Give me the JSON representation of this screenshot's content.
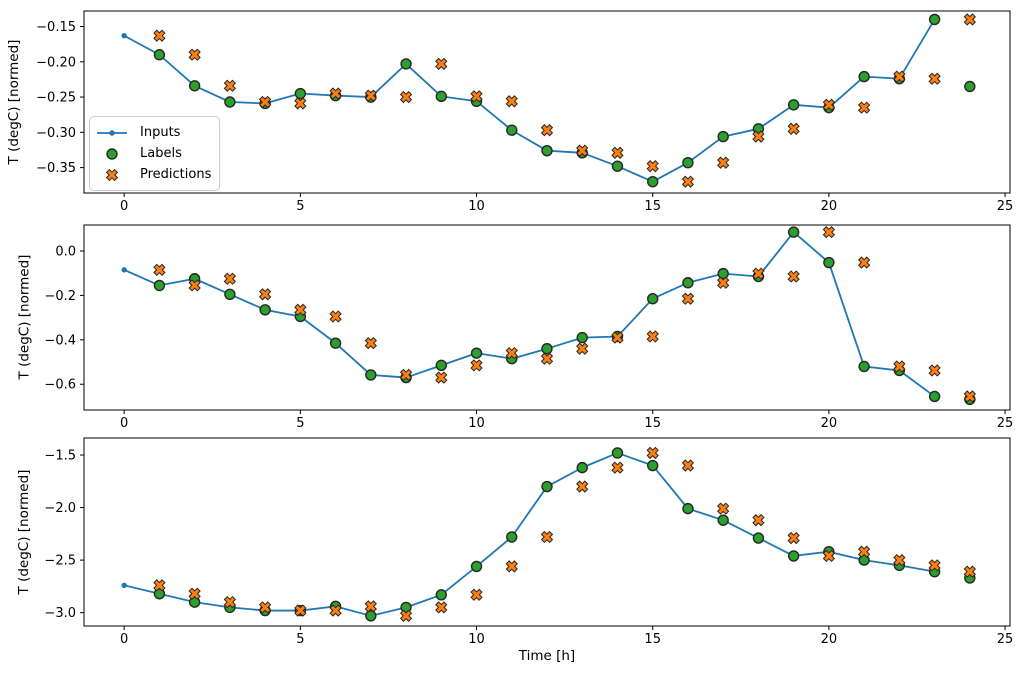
{
  "figure": {
    "background": "#ffffff",
    "xlabel": "Time [h]",
    "ylabel": "T (degC) [normed]"
  },
  "legend": {
    "items": [
      {
        "label": "Inputs",
        "marker": "line-dot",
        "color": "#1f77b4",
        "edgecolor": "#1f77b4"
      },
      {
        "label": "Labels",
        "marker": "circle",
        "color": "#2ca02c",
        "edgecolor": "#262626"
      },
      {
        "label": "Predictions",
        "marker": "X",
        "color": "#ff7f0e",
        "edgecolor": "#262626"
      }
    ]
  },
  "chart_data": [
    {
      "type": "line",
      "title": "",
      "xlabel": "",
      "ylabel": "T (degC) [normed]",
      "xlim": [
        -1.14,
        25.14
      ],
      "ylim": [
        -0.386,
        -0.128
      ],
      "xticks": [
        0,
        5,
        10,
        15,
        20,
        25
      ],
      "xticklabels": [
        "0",
        "5",
        "10",
        "15",
        "20",
        "25"
      ],
      "yticks": [
        -0.15,
        -0.2,
        -0.25,
        -0.3,
        -0.35
      ],
      "yticklabels": [
        "−0.15",
        "−0.20",
        "−0.25",
        "−0.30",
        "−0.35"
      ],
      "grid": false,
      "legend_visible": true,
      "series": [
        {
          "name": "Inputs",
          "plot": "line",
          "marker": "dot",
          "color": "#1f77b4",
          "x": [
            0,
            1,
            2,
            3,
            4,
            5,
            6,
            7,
            8,
            9,
            10,
            11,
            12,
            13,
            14,
            15,
            16,
            17,
            18,
            19,
            20,
            21,
            22,
            23
          ],
          "y": [
            -0.163,
            -0.19,
            -0.234,
            -0.257,
            -0.259,
            -0.245,
            -0.248,
            -0.25,
            -0.203,
            -0.249,
            -0.256,
            -0.297,
            -0.326,
            -0.329,
            -0.348,
            -0.37,
            -0.343,
            -0.306,
            -0.295,
            -0.261,
            -0.265,
            -0.221,
            -0.224,
            -0.14
          ]
        },
        {
          "name": "Labels",
          "plot": "scatter",
          "marker": "circle",
          "color": "#2ca02c",
          "edgecolor": "#262626",
          "x": [
            1,
            2,
            3,
            4,
            5,
            6,
            7,
            8,
            9,
            10,
            11,
            12,
            13,
            14,
            15,
            16,
            17,
            18,
            19,
            20,
            21,
            22,
            23,
            24
          ],
          "y": [
            -0.19,
            -0.234,
            -0.257,
            -0.259,
            -0.245,
            -0.248,
            -0.25,
            -0.203,
            -0.249,
            -0.256,
            -0.297,
            -0.326,
            -0.329,
            -0.348,
            -0.37,
            -0.343,
            -0.306,
            -0.295,
            -0.261,
            -0.265,
            -0.221,
            -0.224,
            -0.14,
            -0.235
          ]
        },
        {
          "name": "Predictions",
          "plot": "scatter",
          "marker": "X",
          "color": "#ff7f0e",
          "edgecolor": "#262626",
          "x": [
            1,
            2,
            3,
            4,
            5,
            6,
            7,
            8,
            9,
            10,
            11,
            12,
            13,
            14,
            15,
            16,
            17,
            18,
            19,
            20,
            21,
            22,
            23,
            24
          ],
          "y": [
            -0.163,
            -0.19,
            -0.234,
            -0.257,
            -0.259,
            -0.245,
            -0.248,
            -0.25,
            -0.203,
            -0.249,
            -0.256,
            -0.297,
            -0.326,
            -0.329,
            -0.348,
            -0.37,
            -0.343,
            -0.306,
            -0.295,
            -0.261,
            -0.265,
            -0.221,
            -0.224,
            -0.14
          ]
        }
      ]
    },
    {
      "type": "line",
      "title": "",
      "xlabel": "",
      "ylabel": "T (degC) [normed]",
      "xlim": [
        -1.14,
        25.14
      ],
      "ylim": [
        -0.716,
        0.117
      ],
      "xticks": [
        0,
        5,
        10,
        15,
        20,
        25
      ],
      "xticklabels": [
        "0",
        "5",
        "10",
        "15",
        "20",
        "25"
      ],
      "yticks": [
        0.0,
        -0.2,
        -0.4,
        -0.6
      ],
      "yticklabels": [
        "0.0",
        "−0.2",
        "−0.4",
        "−0.6"
      ],
      "grid": false,
      "legend_visible": false,
      "series": [
        {
          "name": "Inputs",
          "plot": "line",
          "marker": "dot",
          "color": "#1f77b4",
          "x": [
            0,
            1,
            2,
            3,
            4,
            5,
            6,
            7,
            8,
            9,
            10,
            11,
            12,
            13,
            14,
            15,
            16,
            17,
            18,
            19,
            20,
            21,
            22,
            23
          ],
          "y": [
            -0.085,
            -0.155,
            -0.125,
            -0.195,
            -0.265,
            -0.295,
            -0.415,
            -0.558,
            -0.57,
            -0.515,
            -0.46,
            -0.485,
            -0.44,
            -0.39,
            -0.385,
            -0.215,
            -0.143,
            -0.102,
            -0.115,
            0.085,
            -0.052,
            -0.52,
            -0.538,
            -0.655
          ]
        },
        {
          "name": "Labels",
          "plot": "scatter",
          "marker": "circle",
          "color": "#2ca02c",
          "edgecolor": "#262626",
          "x": [
            1,
            2,
            3,
            4,
            5,
            6,
            7,
            8,
            9,
            10,
            11,
            12,
            13,
            14,
            15,
            16,
            17,
            18,
            19,
            20,
            21,
            22,
            23,
            24
          ],
          "y": [
            -0.155,
            -0.125,
            -0.195,
            -0.265,
            -0.295,
            -0.415,
            -0.558,
            -0.57,
            -0.515,
            -0.46,
            -0.485,
            -0.44,
            -0.39,
            -0.385,
            -0.215,
            -0.143,
            -0.102,
            -0.115,
            0.085,
            -0.052,
            -0.52,
            -0.538,
            -0.655,
            -0.668
          ]
        },
        {
          "name": "Predictions",
          "plot": "scatter",
          "marker": "X",
          "color": "#ff7f0e",
          "edgecolor": "#262626",
          "x": [
            1,
            2,
            3,
            4,
            5,
            6,
            7,
            8,
            9,
            10,
            11,
            12,
            13,
            14,
            15,
            16,
            17,
            18,
            19,
            20,
            21,
            22,
            23,
            24
          ],
          "y": [
            -0.085,
            -0.155,
            -0.125,
            -0.195,
            -0.265,
            -0.295,
            -0.415,
            -0.558,
            -0.57,
            -0.515,
            -0.46,
            -0.485,
            -0.44,
            -0.39,
            -0.385,
            -0.215,
            -0.143,
            -0.102,
            -0.115,
            0.085,
            -0.052,
            -0.52,
            -0.538,
            -0.655
          ]
        }
      ]
    },
    {
      "type": "line",
      "title": "",
      "xlabel": "Time [h]",
      "ylabel": "T (degC) [normed]",
      "xlim": [
        -1.14,
        25.14
      ],
      "ylim": [
        -3.127,
        -1.338
      ],
      "xticks": [
        0,
        5,
        10,
        15,
        20,
        25
      ],
      "xticklabels": [
        "0",
        "5",
        "10",
        "15",
        "20",
        "25"
      ],
      "yticks": [
        -1.5,
        -2.0,
        -2.5,
        -3.0
      ],
      "yticklabels": [
        "−1.5",
        "−2.0",
        "−2.5",
        "−3.0"
      ],
      "grid": false,
      "legend_visible": false,
      "series": [
        {
          "name": "Inputs",
          "plot": "line",
          "marker": "dot",
          "color": "#1f77b4",
          "x": [
            0,
            1,
            2,
            3,
            4,
            5,
            6,
            7,
            8,
            9,
            10,
            11,
            12,
            13,
            14,
            15,
            16,
            17,
            18,
            19,
            20,
            21,
            22,
            23
          ],
          "y": [
            -2.74,
            -2.82,
            -2.9,
            -2.95,
            -2.98,
            -2.98,
            -2.94,
            -3.03,
            -2.95,
            -2.83,
            -2.56,
            -2.28,
            -1.8,
            -1.62,
            -1.48,
            -1.6,
            -2.01,
            -2.12,
            -2.29,
            -2.46,
            -2.42,
            -2.5,
            -2.55,
            -2.61
          ]
        },
        {
          "name": "Labels",
          "plot": "scatter",
          "marker": "circle",
          "color": "#2ca02c",
          "edgecolor": "#262626",
          "x": [
            1,
            2,
            3,
            4,
            5,
            6,
            7,
            8,
            9,
            10,
            11,
            12,
            13,
            14,
            15,
            16,
            17,
            18,
            19,
            20,
            21,
            22,
            23,
            24
          ],
          "y": [
            -2.82,
            -2.9,
            -2.95,
            -2.98,
            -2.98,
            -2.94,
            -3.03,
            -2.95,
            -2.83,
            -2.56,
            -2.28,
            -1.8,
            -1.62,
            -1.48,
            -1.6,
            -2.01,
            -2.12,
            -2.29,
            -2.46,
            -2.42,
            -2.5,
            -2.55,
            -2.61,
            -2.67
          ]
        },
        {
          "name": "Predictions",
          "plot": "scatter",
          "marker": "X",
          "color": "#ff7f0e",
          "edgecolor": "#262626",
          "x": [
            1,
            2,
            3,
            4,
            5,
            6,
            7,
            8,
            9,
            10,
            11,
            12,
            13,
            14,
            15,
            16,
            17,
            18,
            19,
            20,
            21,
            22,
            23,
            24
          ],
          "y": [
            -2.74,
            -2.82,
            -2.9,
            -2.95,
            -2.98,
            -2.98,
            -2.94,
            -3.03,
            -2.95,
            -2.83,
            -2.56,
            -2.28,
            -1.8,
            -1.62,
            -1.48,
            -1.6,
            -2.01,
            -2.12,
            -2.29,
            -2.46,
            -2.42,
            -2.5,
            -2.55,
            -2.61
          ]
        }
      ]
    }
  ]
}
